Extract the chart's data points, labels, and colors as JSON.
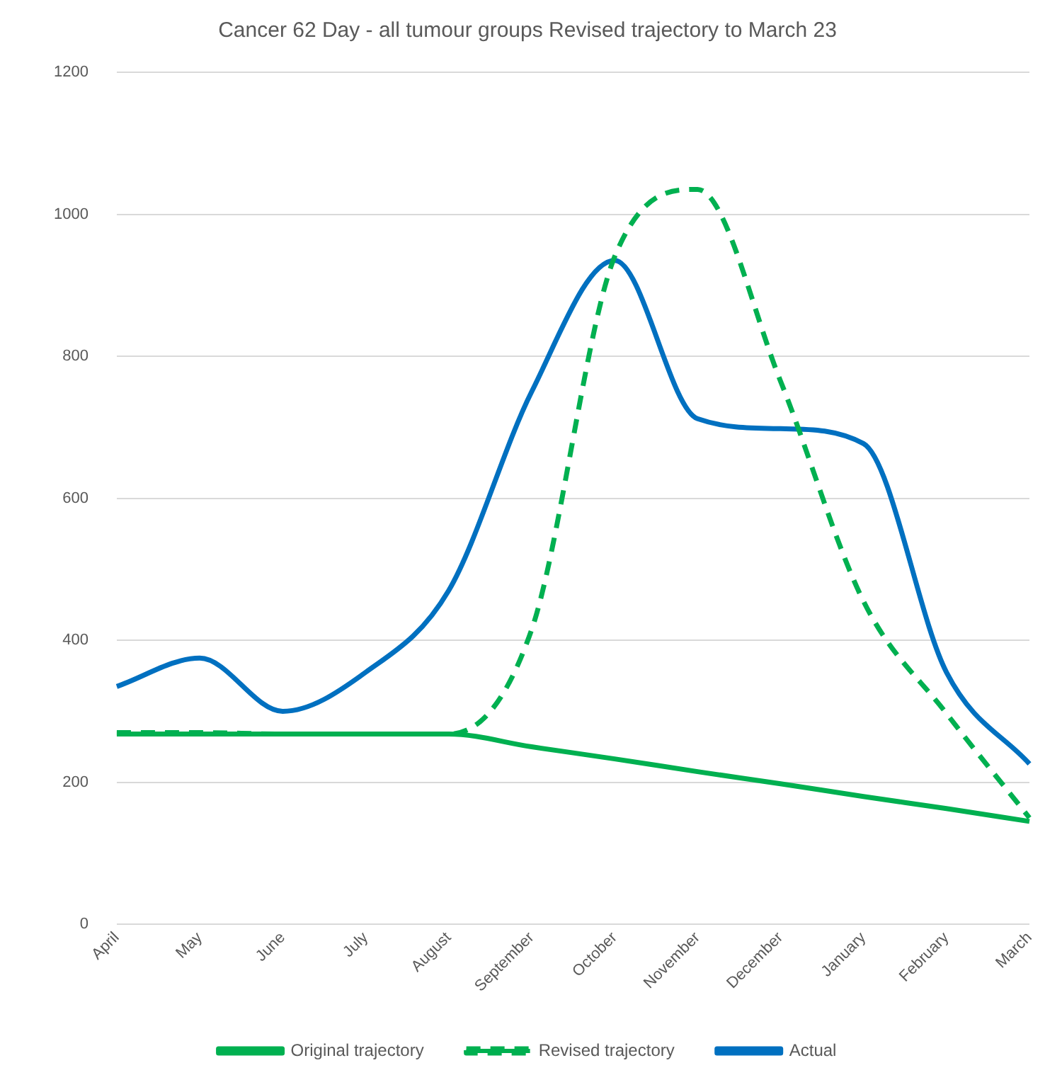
{
  "chart_data": {
    "type": "line",
    "title": "Cancer 62 Day - all tumour groups Revised trajectory to March 23",
    "categories": [
      "April",
      "May",
      "June",
      "July",
      "August",
      "September",
      "October",
      "November",
      "December",
      "January",
      "February",
      "March"
    ],
    "series": [
      {
        "name": "Original trajectory",
        "color": "#00b050",
        "line_style": "solid",
        "values": [
          268,
          268,
          268,
          268,
          268,
          250,
          233,
          215,
          198,
          180,
          163,
          145
        ]
      },
      {
        "name": "Revised trajectory",
        "color": "#00b050",
        "line_style": "dashed",
        "values": [
          270,
          270,
          268,
          268,
          268,
          415,
          940,
          1035,
          765,
          455,
          297,
          150
        ]
      },
      {
        "name": "Actual",
        "color": "#0070c0",
        "line_style": "solid",
        "values": [
          335,
          375,
          300,
          355,
          470,
          750,
          935,
          712,
          698,
          677,
          355,
          226
        ]
      }
    ],
    "ylim": [
      0,
      1200
    ],
    "yticks": [
      0,
      200,
      400,
      600,
      800,
      1000,
      1200
    ],
    "grid": "y",
    "legend": "bottom",
    "marker": "none"
  }
}
